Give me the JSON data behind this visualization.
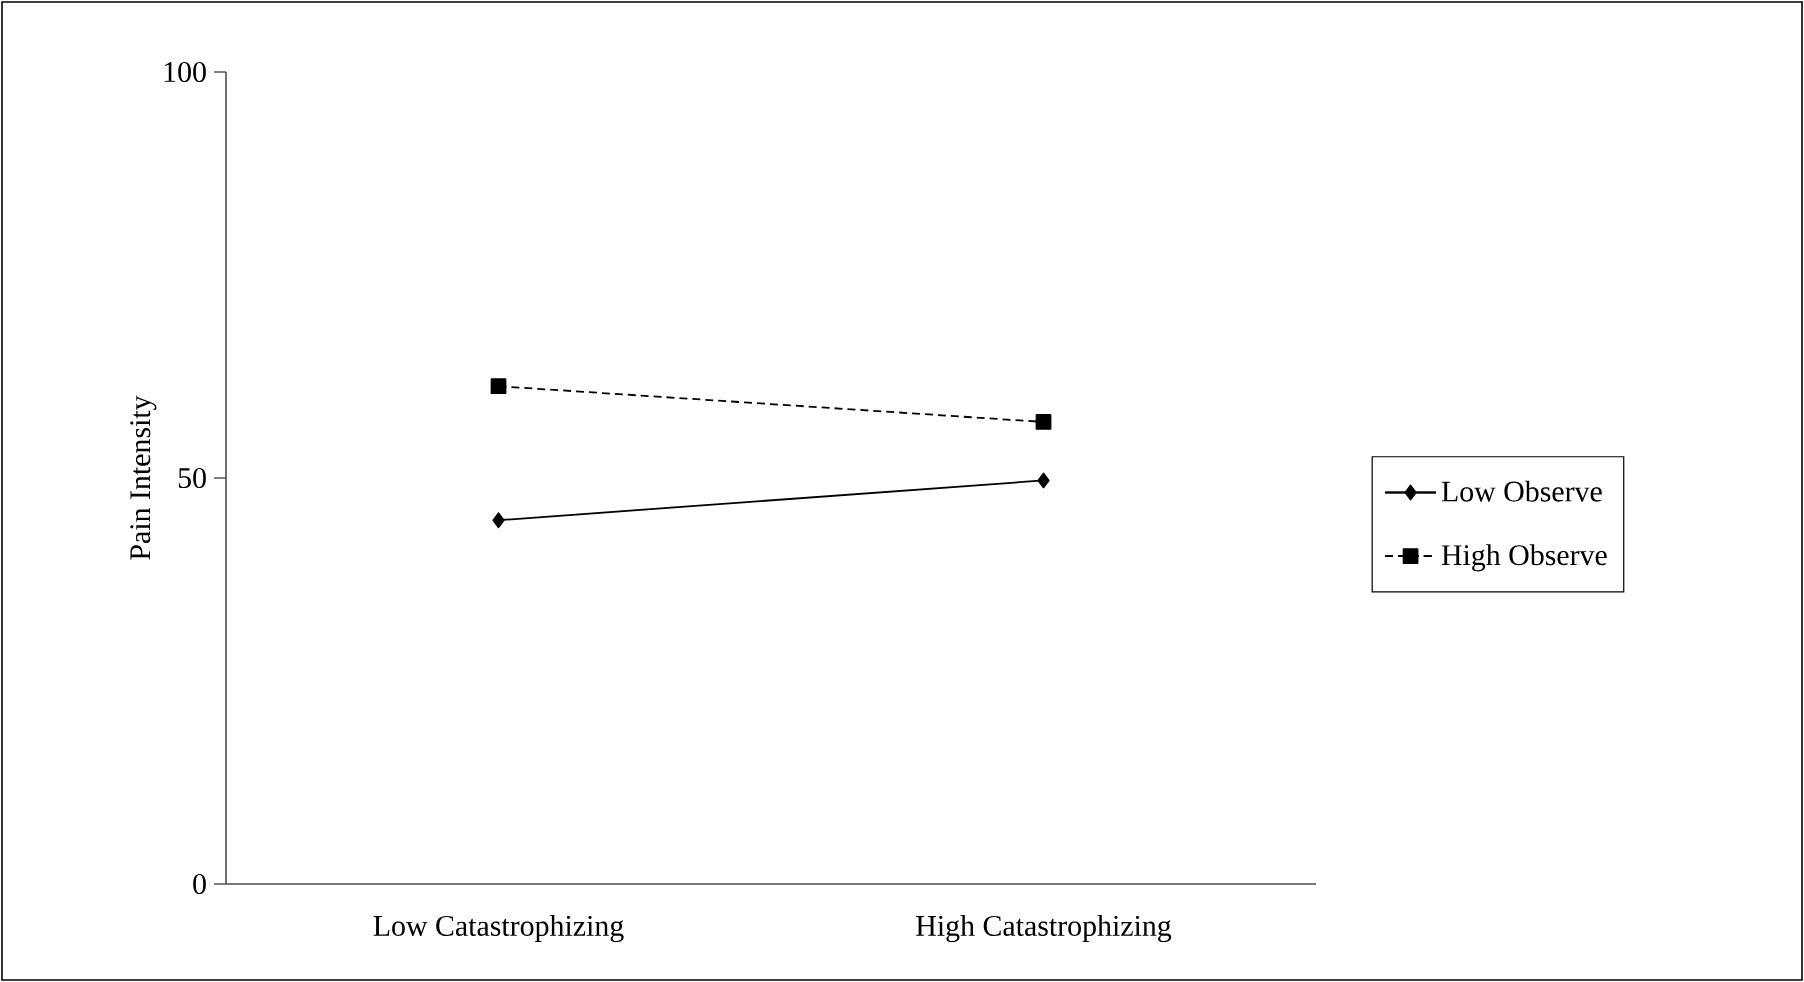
{
  "chart_data": {
    "type": "line",
    "ylabel": "Pain Intensity",
    "categories": [
      "Low Catastrophizing",
      "High Catastrophizing"
    ],
    "series": [
      {
        "name": "Low Observe",
        "color": "#000000",
        "values": [
          44.8,
          49.7
        ],
        "marker": "diamond",
        "line_style": "solid"
      },
      {
        "name": "High Observe",
        "color": "#000000",
        "values": [
          61.3,
          56.9
        ],
        "marker": "square",
        "line_style": "dashed"
      }
    ],
    "ylim": [
      0,
      100
    ],
    "yticks": [
      0,
      50,
      100
    ],
    "grid": false,
    "legend": "right"
  }
}
